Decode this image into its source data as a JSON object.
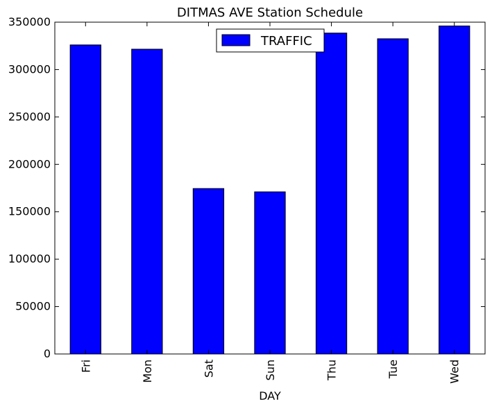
{
  "chart_data": {
    "type": "bar",
    "title": "DITMAS AVE Station Schedule",
    "xlabel": "DAY",
    "ylabel": "",
    "categories": [
      "Fri",
      "Mon",
      "Sat",
      "Sun",
      "Thu",
      "Tue",
      "Wed"
    ],
    "series": [
      {
        "name": "TRAFFIC",
        "values": [
          326000,
          321500,
          174500,
          171000,
          338500,
          332500,
          346000
        ],
        "color": "#0000ff"
      }
    ],
    "ylim": [
      0,
      350000
    ],
    "yticks": [
      0,
      50000,
      100000,
      150000,
      200000,
      250000,
      300000,
      350000
    ],
    "ytick_labels": [
      "0",
      "50000",
      "100000",
      "150000",
      "200000",
      "250000",
      "300000",
      "350000"
    ],
    "grid": false,
    "legend": "top-center"
  }
}
